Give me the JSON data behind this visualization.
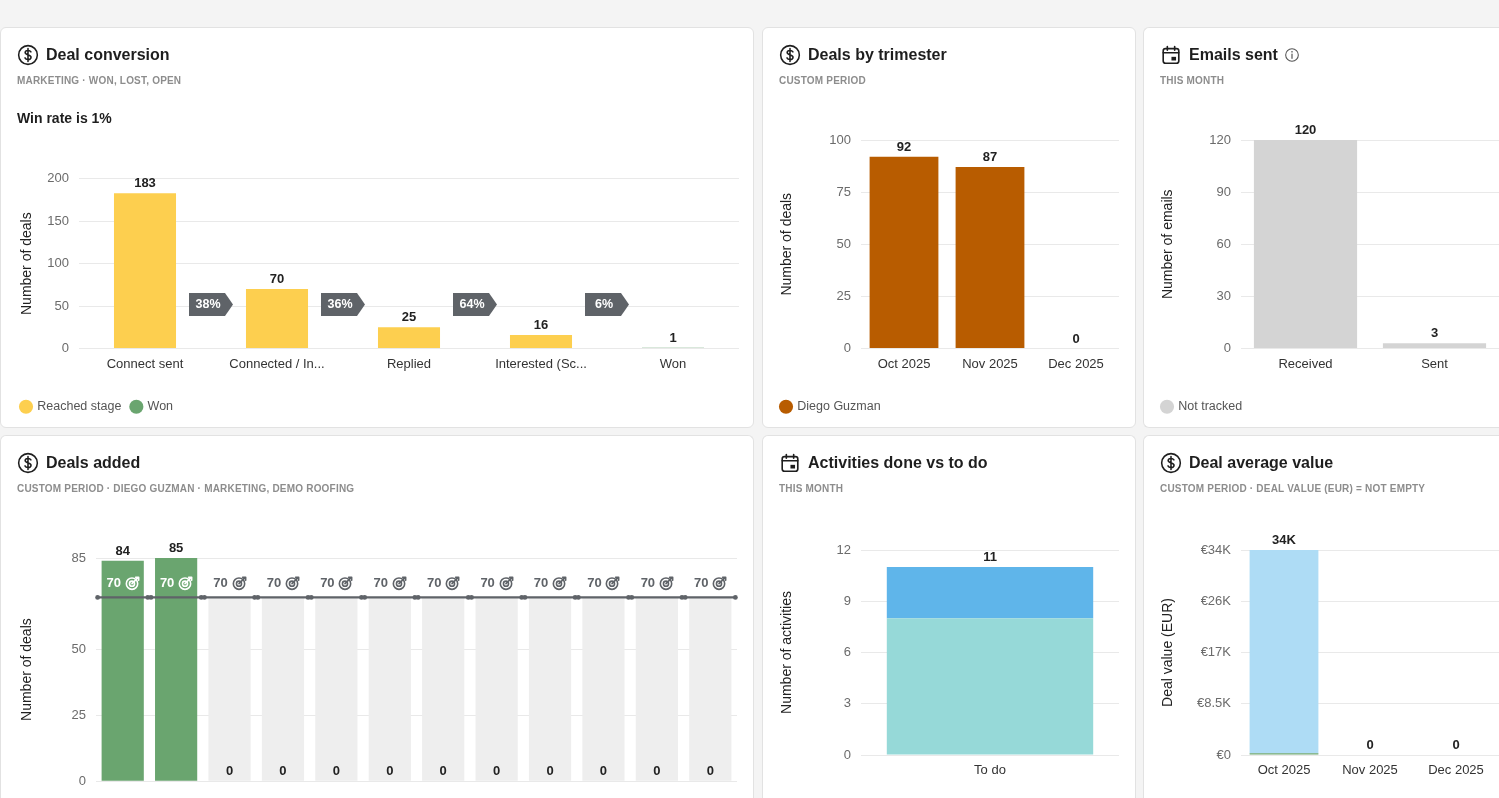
{
  "chart_data": [
    {
      "type": "bar",
      "title": "Deal conversion",
      "subtitle": "MARKETING · WON, LOST, OPEN",
      "annotations": [
        "Win rate is 1%",
        "38%",
        "36%",
        "64%",
        "6%"
      ],
      "ylabel": "Number of deals",
      "categories": [
        "Connect sent",
        "Connected / In...",
        "Replied",
        "Interested (Sc...",
        "Won"
      ],
      "series": [
        {
          "name": "Reached stage",
          "color": "#fdcf4f",
          "values": [
            183,
            70,
            25,
            16,
            null
          ]
        },
        {
          "name": "Won",
          "color": "#6aa56f",
          "values": [
            null,
            null,
            null,
            null,
            1
          ]
        }
      ],
      "ylim": [
        0,
        200
      ],
      "yticks": [
        0,
        50,
        100,
        150,
        200
      ],
      "grid": "y",
      "legend": "bottom left",
      "data_labels": true
    },
    {
      "type": "bar",
      "title": "Deals by trimester",
      "subtitle": "CUSTOM PERIOD",
      "ylabel": "Number of deals",
      "categories": [
        "Oct 2025",
        "Nov 2025",
        "Dec 2025"
      ],
      "series": [
        {
          "name": "Diego Guzman",
          "color": "#b85c00",
          "values": [
            92,
            87,
            0
          ]
        }
      ],
      "ylim": [
        0,
        100
      ],
      "yticks": [
        0,
        25,
        50,
        75,
        100
      ],
      "grid": "y",
      "legend": "bottom left",
      "data_labels": true
    },
    {
      "type": "bar",
      "title": "Emails sent",
      "subtitle": "THIS MONTH",
      "ylabel": "Number of emails",
      "categories": [
        "Received",
        "Sent"
      ],
      "series": [
        {
          "name": "Not tracked",
          "color": "#d4d4d4",
          "values": [
            120,
            3
          ]
        }
      ],
      "ylim": [
        0,
        120
      ],
      "yticks": [
        0,
        30,
        60,
        90,
        120
      ],
      "grid": "y",
      "legend": "bottom left",
      "data_labels": true
    },
    {
      "type": "bar",
      "title": "Deals added",
      "subtitle": "CUSTOM PERIOD · DIEGO GUZMAN · MARKETING, DEMO ROOFING",
      "ylabel": "Number of deals",
      "categories": [
        null,
        null,
        null,
        null,
        null,
        null,
        null,
        null,
        null,
        null,
        null,
        null
      ],
      "series": [
        {
          "color": "#6aa56f",
          "values": [
            84,
            85,
            0,
            0,
            0,
            0,
            0,
            0,
            0,
            0,
            0,
            0
          ],
          "value_labels": [
            "84",
            "85",
            "0",
            "0",
            "0",
            "0",
            "0",
            "0",
            "0",
            "0",
            "0",
            "0"
          ]
        },
        {
          "color": "#eeeeee",
          "values": [
            null,
            null,
            70,
            70,
            70,
            70,
            70,
            70,
            70,
            70,
            70,
            70
          ]
        }
      ],
      "ref_lines": [
        {
          "axis": "y",
          "value": 70,
          "label": "70",
          "color": "#5f6368"
        }
      ],
      "ylim": [
        0,
        85
      ],
      "yticks": [
        0,
        25,
        50,
        85
      ],
      "grid": "y"
    },
    {
      "type": "bar",
      "title": "Activities done vs to do",
      "subtitle": "THIS MONTH",
      "ylabel": "Number of activities",
      "categories": [
        "To do"
      ],
      "stacked": true,
      "series": [
        {
          "color": "#96d9d8",
          "values": [
            8
          ]
        },
        {
          "color": "#5fb5ea",
          "values": [
            3
          ]
        }
      ],
      "totals": [
        "11"
      ],
      "ylim": [
        0,
        12
      ],
      "yticks": [
        0,
        3,
        6,
        9,
        12
      ],
      "grid": "y"
    },
    {
      "type": "bar",
      "title": "Deal average value",
      "subtitle": "CUSTOM PERIOD · DEAL VALUE (EUR) = NOT EMPTY",
      "ylabel": "Deal value (EUR)",
      "categories": [
        "Oct 2025",
        "Nov 2025",
        "Dec 2025"
      ],
      "stacked": true,
      "series": [
        {
          "color": "#6aa56f",
          "values": [
            300,
            0,
            0
          ]
        },
        {
          "color": "#aedcf5",
          "values": [
            33700,
            0,
            0
          ]
        }
      ],
      "totals": [
        "34K",
        "0",
        "0"
      ],
      "ylim": [
        0,
        34000
      ],
      "yticks": [
        {
          "value": 0,
          "label": "€0"
        },
        {
          "value": 8500,
          "label": "€8.5K"
        },
        {
          "value": 17000,
          "label": "€17K"
        },
        {
          "value": 25500,
          "label": "€26K"
        },
        {
          "value": 34000,
          "label": "€34K"
        }
      ],
      "grid": "y"
    }
  ]
}
